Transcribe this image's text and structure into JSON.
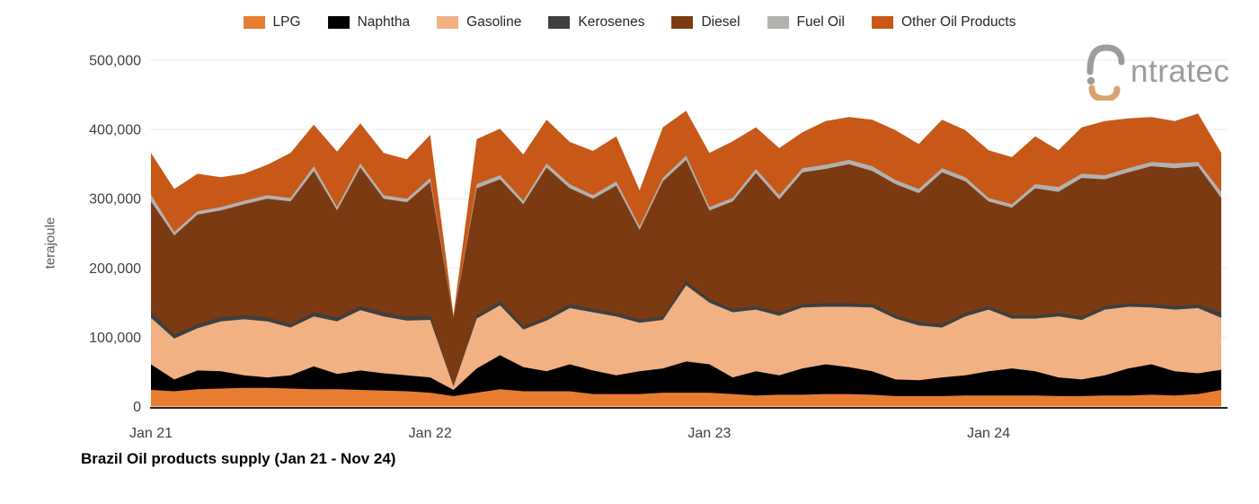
{
  "logo": {
    "text": "ntratec",
    "name": "intratec"
  },
  "chart_data": {
    "type": "area",
    "stacked": true,
    "title": "Brazil Oil products supply (Jan 21 - Nov 24)",
    "ylabel": "terajoule",
    "ylim": [
      0,
      500000
    ],
    "grid": "horizontal-faint",
    "legend_position": "top-center",
    "ytick_values": [
      0,
      100000,
      200000,
      300000,
      400000,
      500000
    ],
    "ytick_labels": [
      "0",
      "100,000",
      "200,000",
      "300,000",
      "400,000",
      "500,000"
    ],
    "xticks": [
      {
        "label": "Jan 21",
        "index": 0
      },
      {
        "label": "Jan 22",
        "index": 12
      },
      {
        "label": "Jan 23",
        "index": 24
      },
      {
        "label": "Jan 24",
        "index": 36
      }
    ],
    "x": [
      "Jan 21",
      "Feb 21",
      "Mar 21",
      "Apr 21",
      "May 21",
      "Jun 21",
      "Jul 21",
      "Aug 21",
      "Sep 21",
      "Oct 21",
      "Nov 21",
      "Dec 21",
      "Jan 22",
      "Feb 22",
      "Mar 22",
      "Apr 22",
      "May 22",
      "Jun 22",
      "Jul 22",
      "Aug 22",
      "Sep 22",
      "Oct 22",
      "Nov 22",
      "Dec 22",
      "Jan 23",
      "Feb 23",
      "Mar 23",
      "Apr 23",
      "May 23",
      "Jun 23",
      "Jul 23",
      "Aug 23",
      "Sep 23",
      "Oct 23",
      "Nov 23",
      "Dec 23",
      "Jan 24",
      "Feb 24",
      "Mar 24",
      "Apr 24",
      "May 24",
      "Jun 24",
      "Jul 24",
      "Aug 24",
      "Sep 24",
      "Oct 24",
      "Nov 24"
    ],
    "series": [
      {
        "name": "LPG",
        "color": "#E87D31",
        "values": [
          24000,
          22000,
          25000,
          26000,
          27000,
          27000,
          26000,
          25000,
          25000,
          24000,
          23000,
          22000,
          20000,
          15000,
          20000,
          25000,
          22000,
          22000,
          22000,
          18000,
          18000,
          18000,
          20000,
          20000,
          20000,
          18000,
          16000,
          17000,
          17000,
          18000,
          18000,
          17000,
          15000,
          15000,
          15000,
          16000,
          16000,
          16000,
          16000,
          15000,
          15000,
          16000,
          16000,
          17000,
          16000,
          18000,
          24000
        ]
      },
      {
        "name": "Naphtha",
        "color": "#000000",
        "values": [
          37000,
          17000,
          27000,
          25000,
          18000,
          15000,
          19000,
          33000,
          22000,
          28000,
          25000,
          23000,
          22000,
          9000,
          35000,
          49000,
          35000,
          29000,
          39000,
          34000,
          27000,
          33000,
          35000,
          45000,
          41000,
          24000,
          35000,
          28000,
          38000,
          43000,
          39000,
          34000,
          24000,
          23000,
          27000,
          29000,
          35000,
          39000,
          35000,
          27000,
          24000,
          29000,
          39000,
          44000,
          35000,
          30000,
          29000
        ]
      },
      {
        "name": "Gasoline",
        "color": "#F2B183",
        "values": [
          67000,
          59000,
          61000,
          72000,
          81000,
          81000,
          69000,
          72000,
          76000,
          87000,
          82000,
          79000,
          83000,
          5000,
          72000,
          72000,
          54000,
          73000,
          81000,
          84000,
          85000,
          70000,
          70000,
          110000,
          89000,
          94000,
          89000,
          86000,
          88000,
          83000,
          87000,
          92000,
          88000,
          79000,
          72000,
          85000,
          89000,
          72000,
          76000,
          88000,
          86000,
          95000,
          89000,
          82000,
          89000,
          94000,
          75000
        ]
      },
      {
        "name": "Kerosenes",
        "color": "#3F3F3F",
        "values": [
          9000,
          6000,
          6000,
          6000,
          6000,
          6000,
          5000,
          6000,
          6000,
          6000,
          6000,
          6000,
          6000,
          1000,
          5000,
          6000,
          5000,
          5000,
          6000,
          5000,
          5000,
          5000,
          5000,
          6000,
          5000,
          5000,
          5000,
          5000,
          5000,
          5000,
          5000,
          5000,
          5000,
          5000,
          5000,
          5000,
          5000,
          5000,
          5000,
          5000,
          5000,
          5000,
          5000,
          5000,
          5000,
          5000,
          8000
        ]
      },
      {
        "name": "Diesel",
        "color": "#7C3A12",
        "values": [
          159000,
          143000,
          158000,
          154000,
          160000,
          171000,
          177000,
          204000,
          154000,
          200000,
          164000,
          165000,
          193000,
          98000,
          183000,
          176000,
          176000,
          216000,
          167000,
          159000,
          184000,
          129000,
          195000,
          175000,
          128000,
          155000,
          192000,
          163000,
          190000,
          194000,
          201000,
          192000,
          189000,
          186000,
          219000,
          190000,
          151000,
          155000,
          183000,
          175000,
          200000,
          183000,
          189000,
          199000,
          199000,
          200000,
          165000
        ]
      },
      {
        "name": "Fuel Oil",
        "color": "#B3B1AE",
        "values": [
          10000,
          5000,
          5000,
          5000,
          5000,
          5000,
          5000,
          7000,
          5000,
          6000,
          5000,
          5000,
          6000,
          1000,
          6000,
          6000,
          5000,
          6000,
          6000,
          5000,
          6000,
          5000,
          5000,
          6000,
          5000,
          5000,
          6000,
          6000,
          6000,
          6000,
          6000,
          7000,
          6000,
          6000,
          6000,
          6000,
          5000,
          5000,
          6000,
          7000,
          6000,
          6000,
          6000,
          6000,
          7000,
          6000,
          9000
        ]
      },
      {
        "name": "Other Oil Products",
        "color": "#C75818",
        "values": [
          60000,
          62000,
          54000,
          43000,
          39000,
          44000,
          65000,
          60000,
          80000,
          58000,
          61000,
          57000,
          62000,
          3000,
          65000,
          67000,
          67000,
          63000,
          61000,
          64000,
          65000,
          52000,
          73000,
          65000,
          78000,
          82000,
          60000,
          68000,
          52000,
          63000,
          62000,
          67000,
          72000,
          65000,
          70000,
          68000,
          69000,
          68000,
          69000,
          53000,
          67000,
          78000,
          72000,
          65000,
          61000,
          70000,
          56000
        ]
      }
    ]
  }
}
